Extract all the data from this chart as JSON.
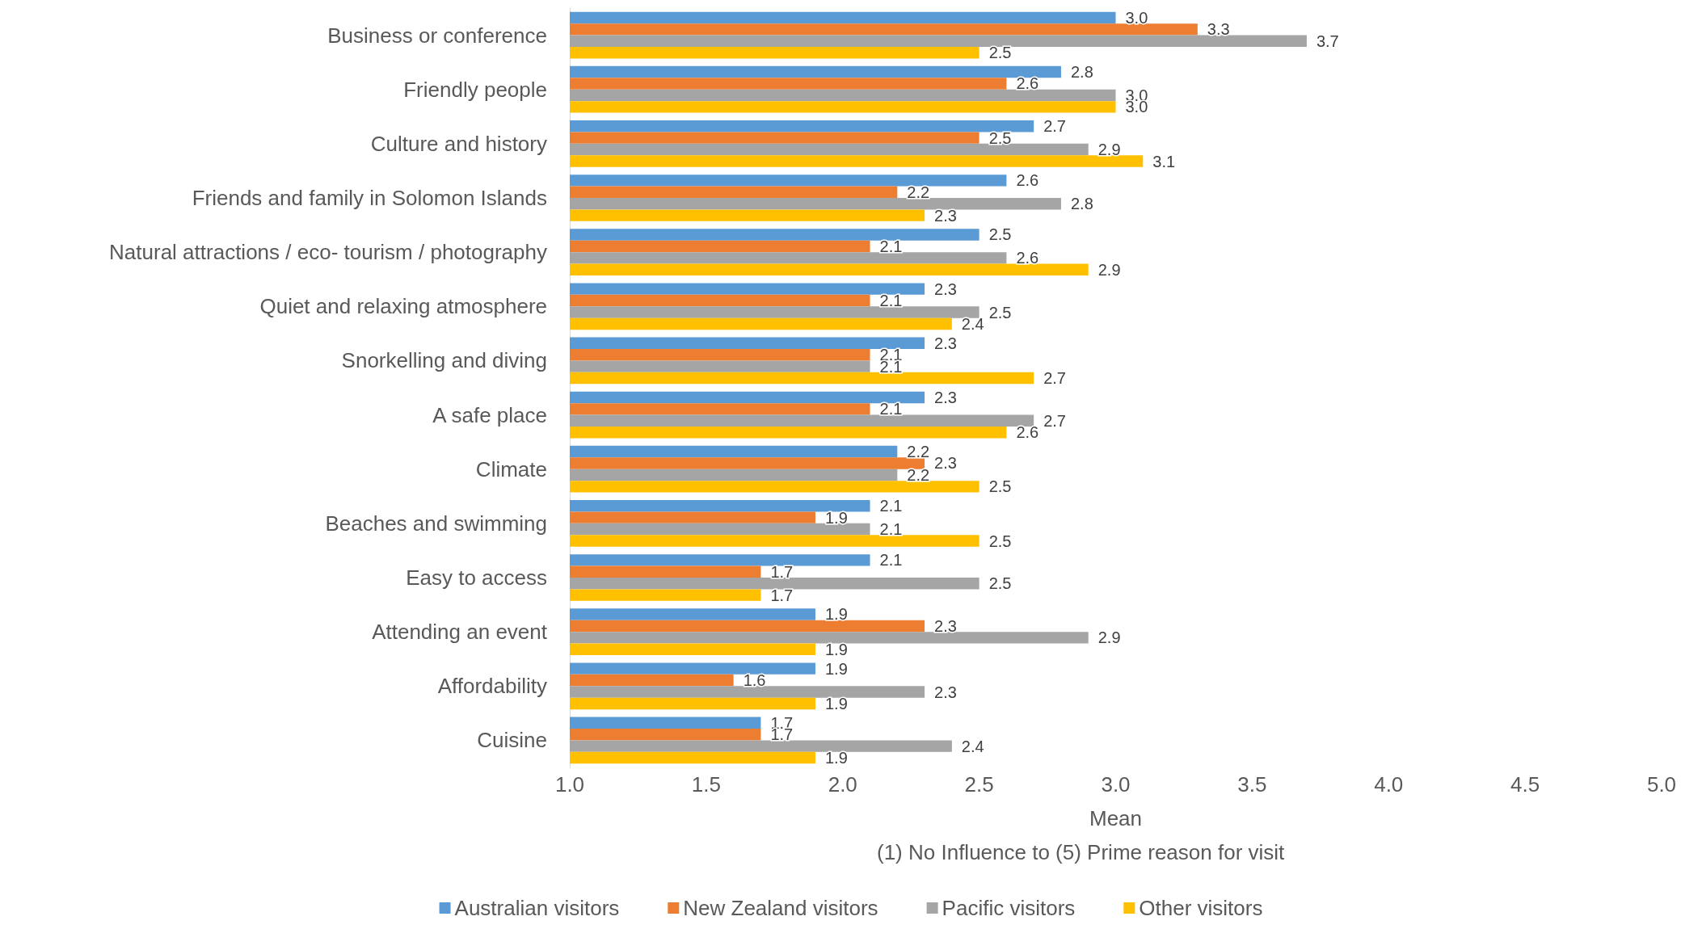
{
  "chart_data": {
    "type": "bar",
    "orientation": "horizontal",
    "categories": [
      "Business or conference",
      "Friendly people",
      "Culture and history",
      "Friends and family in Solomon Islands",
      "Natural attractions / eco- tourism / photography",
      "Quiet and relaxing atmosphere",
      "Snorkelling and diving",
      "A safe place",
      "Climate",
      "Beaches and swimming",
      "Easy to access",
      "Attending an event",
      "Affordability",
      "Cuisine"
    ],
    "series": [
      {
        "name": "Australian visitors",
        "color": "#5b9bd5",
        "values": [
          3.0,
          2.8,
          2.7,
          2.6,
          2.5,
          2.3,
          2.3,
          2.3,
          2.2,
          2.1,
          2.1,
          1.9,
          1.9,
          1.7
        ],
        "value_labels": [
          "3.0",
          "2.8",
          "2.7",
          "2.6",
          "2.5",
          "2.3",
          "2.3",
          "2.3",
          "2.2",
          "2.1",
          "2.1",
          "1.9",
          "1.9",
          "1.7"
        ]
      },
      {
        "name": "New Zealand visitors",
        "color": "#ed7d31",
        "values": [
          3.3,
          2.6,
          2.5,
          2.2,
          2.1,
          2.1,
          2.1,
          2.1,
          2.3,
          1.9,
          1.7,
          2.3,
          1.6,
          1.7
        ],
        "value_labels": [
          "3.3",
          "2.6",
          "2.5",
          "2.2",
          "2.1",
          "2.1",
          "2.1",
          "2.1",
          "2.3",
          "1.9",
          "1.7",
          "2.3",
          "1.6",
          "1.7"
        ]
      },
      {
        "name": "Pacific visitors",
        "color": "#a5a5a5",
        "values": [
          3.7,
          3.0,
          2.9,
          2.8,
          2.6,
          2.5,
          2.1,
          2.7,
          2.2,
          2.1,
          2.5,
          2.9,
          2.3,
          2.4
        ],
        "value_labels": [
          "3.7",
          "3.0",
          "2.9",
          "2.8",
          "2.6",
          "2.5",
          "2.1",
          "2.7",
          "2.2",
          "2.1",
          "2.5",
          "2.9",
          "2.3",
          "2.4"
        ]
      },
      {
        "name": "Other visitors",
        "color": "#ffc000",
        "values": [
          2.5,
          3.0,
          3.1,
          2.3,
          2.9,
          2.4,
          2.7,
          2.6,
          2.5,
          2.5,
          1.7,
          1.9,
          1.9,
          1.9
        ],
        "value_labels": [
          "2.5",
          "3.0",
          "3.1",
          "2.3",
          "2.9",
          "2.4",
          "2.7",
          "2.6",
          "2.5",
          "2.5",
          "1.7",
          "1.9",
          "1.9",
          "1.9"
        ]
      }
    ],
    "xlim": [
      1,
      5
    ],
    "xticks": [
      {
        "value": 1,
        "label": "1.0"
      },
      {
        "value": 1.5,
        "label": "1.5"
      },
      {
        "value": 2,
        "label": "2.0"
      },
      {
        "value": 2.5,
        "label": "2.5"
      },
      {
        "value": 3,
        "label": "3.0"
      },
      {
        "value": 3.5,
        "label": "3.5"
      },
      {
        "value": 4,
        "label": "4.0"
      },
      {
        "value": 4.5,
        "label": "4.5"
      },
      {
        "value": 5,
        "label": "5.0"
      }
    ],
    "xlabel": "Mean",
    "annotations": [
      "(1) No Influence to (5) Prime reason for visit"
    ],
    "legend": "bottom",
    "grid": false
  }
}
